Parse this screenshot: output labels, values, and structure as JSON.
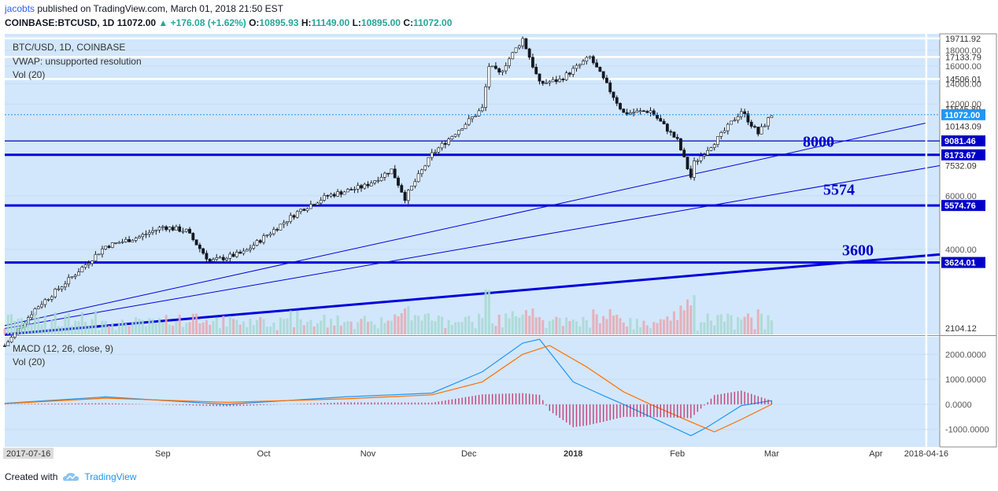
{
  "header": {
    "author": "jacobts",
    "published": "published on TradingView.com, March 01, 2018 21:50 EST",
    "symbol": "COINBASE:BTCUSD, 1D",
    "last": "11072.00",
    "change": "+176.08 (+1.62%)",
    "o_label": "O:",
    "o": "10895.93",
    "h_label": "H:",
    "h": "11149.00",
    "l_label": "L:",
    "l": "10895.00",
    "c_label": "C:",
    "c": "11072.00"
  },
  "legend_main": {
    "line1": "BTC/USD, 1D, COINBASE",
    "line2": "VWAP: unsupported resolution",
    "line3": "Vol (20)"
  },
  "legend_macd": {
    "line1": "MACD (12, 26, close, 9)",
    "line2": "Vol (20)"
  },
  "footer": {
    "created": "Created with",
    "brand": "TradingView"
  },
  "chart_data": [
    {
      "type": "candlestick",
      "title": "BTC/USD, 1D, COINBASE",
      "x_range": [
        "2017-07-16",
        "2018-04-20"
      ],
      "y_range": [
        2104.12,
        20400
      ],
      "y_scale": "log",
      "x_ticks": [
        {
          "date": "2017-07-16",
          "label": "2017-07-16"
        },
        {
          "date": "2017-09-01",
          "label": "Sep"
        },
        {
          "date": "2017-10-01",
          "label": "Oct"
        },
        {
          "date": "2017-11-01",
          "label": "Nov"
        },
        {
          "date": "2017-12-01",
          "label": "Dec"
        },
        {
          "date": "2018-01-01",
          "label": "2018"
        },
        {
          "date": "2018-02-01",
          "label": "Feb"
        },
        {
          "date": "2018-03-01",
          "label": "Mar"
        },
        {
          "date": "2018-04-01",
          "label": "Apr"
        },
        {
          "date": "2018-04-16",
          "label": "2018-04-16"
        }
      ],
      "y_ticks": [
        4000,
        6000,
        12000,
        14000,
        16000,
        18000,
        20000
      ],
      "y_tick_labels": [
        "4000.00",
        "6000.00",
        "12000.00",
        "14000.00",
        "16000.00",
        "18000.00",
        "20000.00"
      ],
      "price_labels": [
        "19711.92",
        "17133.79",
        "14506.01",
        "11545.89",
        "10143.09",
        "7532.09",
        "2104.12"
      ],
      "last_price": {
        "value": 11072.0,
        "label": "11072.00"
      },
      "series": [
        {
          "name": "Close",
          "data": [
            [
              "2017-07-16",
              1930
            ],
            [
              "2017-07-25",
              2550
            ],
            [
              "2017-08-05",
              3250
            ],
            [
              "2017-08-15",
              4100
            ],
            [
              "2017-08-25",
              4400
            ],
            [
              "2017-09-01",
              4750
            ],
            [
              "2017-09-08",
              4600
            ],
            [
              "2017-09-15",
              3650
            ],
            [
              "2017-09-25",
              3900
            ],
            [
              "2017-10-01",
              4380
            ],
            [
              "2017-10-12",
              5400
            ],
            [
              "2017-10-20",
              6000
            ],
            [
              "2017-10-31",
              6450
            ],
            [
              "2017-11-08",
              7300
            ],
            [
              "2017-11-12",
              5900
            ],
            [
              "2017-11-20",
              8200
            ],
            [
              "2017-11-28",
              9900
            ],
            [
              "2017-12-05",
              11600
            ],
            [
              "2017-12-07",
              16000
            ],
            [
              "2017-12-10",
              15100
            ],
            [
              "2017-12-17",
              19650
            ],
            [
              "2017-12-22",
              14000
            ],
            [
              "2017-12-28",
              14400
            ],
            [
              "2018-01-06",
              17100
            ],
            [
              "2018-01-16",
              11200
            ],
            [
              "2018-01-24",
              11400
            ],
            [
              "2018-02-01",
              9100
            ],
            [
              "2018-02-05",
              6900
            ],
            [
              "2018-02-06",
              7700
            ],
            [
              "2018-02-14",
              9500
            ],
            [
              "2018-02-20",
              11400
            ],
            [
              "2018-02-25",
              9600
            ],
            [
              "2018-03-01",
              11072
            ]
          ]
        }
      ],
      "horizontal_levels": [
        {
          "value": 19711.92,
          "label": "19711.92",
          "color": "#ffffff"
        },
        {
          "value": 17133.79,
          "label": "17133.79",
          "color": "#ffffff"
        },
        {
          "value": 14506.01,
          "label": "14506.01",
          "color": "#ffffff"
        },
        {
          "value": 9081.46,
          "label": "9081.46",
          "color": "#0000c8"
        },
        {
          "value": 8173.67,
          "label": "8173.67",
          "color": "#0000dd"
        },
        {
          "value": 5574.76,
          "label": "5574.76",
          "color": "#0000dd"
        },
        {
          "value": 3624.01,
          "label": "3624.01",
          "color": "#0000dd"
        }
      ],
      "trend_lines": [
        {
          "from": [
            "2017-07-16",
            2200
          ],
          "to": [
            "2018-04-20",
            7532.09
          ]
        },
        {
          "from": [
            "2017-07-16",
            2250
          ],
          "to": [
            "2018-04-16",
            10400
          ]
        },
        {
          "from": [
            "2017-07-16",
            2104.12
          ],
          "to": [
            "2018-04-20",
            3850
          ]
        }
      ],
      "annotations": [
        "8000",
        "5574",
        "3600"
      ],
      "vertical_marker": "2018-04-16",
      "volume_series_name": "Vol (20)",
      "colors": {
        "background": "#d2e7fb",
        "up": "#26a69a",
        "down": "#ef5350",
        "levels": "#0000dd"
      }
    },
    {
      "type": "line",
      "title": "MACD (12, 26, close, 9)",
      "y_range": [
        -1700,
        2700
      ],
      "y_ticks": [
        -1000,
        0,
        1000,
        2000
      ],
      "y_tick_labels": [
        "-1000.0000",
        "0.0000",
        "1000.0000",
        "2000.0000"
      ],
      "series": [
        {
          "name": "MACD",
          "color": "#2196f3",
          "data": [
            [
              "2017-07-16",
              40
            ],
            [
              "2017-08-15",
              300
            ],
            [
              "2017-09-20",
              0
            ],
            [
              "2017-10-25",
              300
            ],
            [
              "2017-11-20",
              450
            ],
            [
              "2017-12-05",
              1300
            ],
            [
              "2017-12-17",
              2450
            ],
            [
              "2017-12-22",
              2600
            ],
            [
              "2018-01-01",
              900
            ],
            [
              "2018-01-10",
              350
            ],
            [
              "2018-01-16",
              0
            ],
            [
              "2018-01-24",
              -500
            ],
            [
              "2018-02-05",
              -1250
            ],
            [
              "2018-02-10",
              -900
            ],
            [
              "2018-02-20",
              -50
            ],
            [
              "2018-03-01",
              150
            ]
          ]
        },
        {
          "name": "Signal",
          "color": "#ff6d00",
          "data": [
            [
              "2017-07-16",
              30
            ],
            [
              "2017-08-15",
              250
            ],
            [
              "2017-09-20",
              80
            ],
            [
              "2017-10-25",
              220
            ],
            [
              "2017-11-20",
              380
            ],
            [
              "2017-12-05",
              900
            ],
            [
              "2017-12-17",
              2000
            ],
            [
              "2017-12-25",
              2350
            ],
            [
              "2018-01-05",
              1500
            ],
            [
              "2018-01-16",
              500
            ],
            [
              "2018-01-24",
              0
            ],
            [
              "2018-02-05",
              -700
            ],
            [
              "2018-02-12",
              -1100
            ],
            [
              "2018-02-20",
              -600
            ],
            [
              "2018-03-01",
              0
            ]
          ]
        }
      ]
    }
  ]
}
